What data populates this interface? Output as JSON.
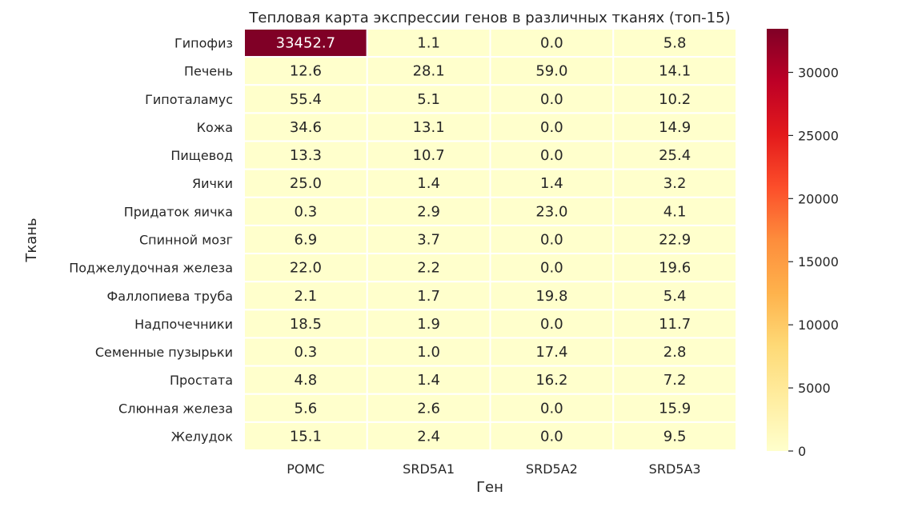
{
  "chart_data": {
    "type": "heatmap",
    "title": "Тепловая карта экспрессии генов в различных тканях (топ-15)",
    "xlabel": "Ген",
    "ylabel": "Ткань",
    "x_categories": [
      "POMC",
      "SRD5A1",
      "SRD5A2",
      "SRD5A3"
    ],
    "y_categories": [
      "Гипофиз",
      "Печень",
      "Гипоталамус",
      "Кожа",
      "Пищевод",
      "Яички",
      "Придаток яичка",
      "Спинной мозг",
      "Поджелудочная железа",
      "Фаллопиева труба",
      "Надпочечники",
      "Семенные пузырьки",
      "Простата",
      "Слюнная железа",
      "Желудок"
    ],
    "values": [
      [
        33452.7,
        1.1,
        0.0,
        5.8
      ],
      [
        12.6,
        28.1,
        59.0,
        14.1
      ],
      [
        55.4,
        5.1,
        0.0,
        10.2
      ],
      [
        34.6,
        13.1,
        0.0,
        14.9
      ],
      [
        13.3,
        10.7,
        0.0,
        25.4
      ],
      [
        25.0,
        1.4,
        1.4,
        3.2
      ],
      [
        0.3,
        2.9,
        23.0,
        4.1
      ],
      [
        6.9,
        3.7,
        0.0,
        22.9
      ],
      [
        22.0,
        2.2,
        0.0,
        19.6
      ],
      [
        2.1,
        1.7,
        19.8,
        5.4
      ],
      [
        18.5,
        1.9,
        0.0,
        11.7
      ],
      [
        0.3,
        1.0,
        17.4,
        2.8
      ],
      [
        4.8,
        1.4,
        16.2,
        7.2
      ],
      [
        5.6,
        2.6,
        0.0,
        15.9
      ],
      [
        15.1,
        2.4,
        0.0,
        9.5
      ]
    ],
    "value_labels": [
      [
        "33452.7",
        "1.1",
        "0.0",
        "5.8"
      ],
      [
        "12.6",
        "28.1",
        "59.0",
        "14.1"
      ],
      [
        "55.4",
        "5.1",
        "0.0",
        "10.2"
      ],
      [
        "34.6",
        "13.1",
        "0.0",
        "14.9"
      ],
      [
        "13.3",
        "10.7",
        "0.0",
        "25.4"
      ],
      [
        "25.0",
        "1.4",
        "1.4",
        "3.2"
      ],
      [
        "0.3",
        "2.9",
        "23.0",
        "4.1"
      ],
      [
        "6.9",
        "3.7",
        "0.0",
        "22.9"
      ],
      [
        "22.0",
        "2.2",
        "0.0",
        "19.6"
      ],
      [
        "2.1",
        "1.7",
        "19.8",
        "5.4"
      ],
      [
        "18.5",
        "1.9",
        "0.0",
        "11.7"
      ],
      [
        "0.3",
        "1.0",
        "17.4",
        "2.8"
      ],
      [
        "4.8",
        "1.4",
        "16.2",
        "7.2"
      ],
      [
        "5.6",
        "2.6",
        "0.0",
        "15.9"
      ],
      [
        "15.1",
        "2.4",
        "0.0",
        "9.5"
      ]
    ],
    "colormap": "YlOrRd",
    "colorbar": {
      "range": [
        0,
        33452.7
      ],
      "ticks": [
        0,
        5000,
        10000,
        15000,
        20000,
        25000,
        30000
      ],
      "tick_labels": [
        "0",
        "5000",
        "10000",
        "15000",
        "20000",
        "25000",
        "30000"
      ],
      "placement": "right"
    },
    "colors": {
      "low": "#ffffcc",
      "high": "#800026",
      "text_dark": "#262626",
      "text_light": "#ffffff",
      "cell_border": "#ffffff"
    }
  }
}
